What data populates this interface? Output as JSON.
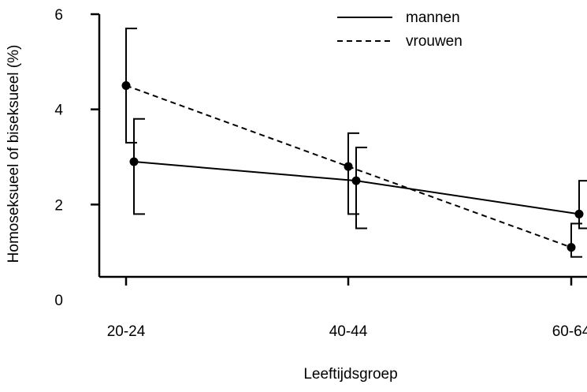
{
  "chart_data": {
    "type": "line",
    "title": "",
    "xlabel": "Leeftijdsgroep",
    "ylabel": "Homoseksueel of biseksueel (%)",
    "categories": [
      "20-24",
      "40-44",
      "60-64"
    ],
    "ylim": [
      0,
      6
    ],
    "yticks": [
      0,
      2,
      4,
      6
    ],
    "legend_position": "top-right",
    "series": [
      {
        "name": "mannen",
        "line_style": "solid",
        "values": [
          2.9,
          2.5,
          1.8
        ],
        "err_low": [
          1.8,
          1.5,
          1.5
        ],
        "err_high": [
          3.8,
          3.2,
          2.5
        ]
      },
      {
        "name": "vrouwen",
        "line_style": "dashed",
        "values": [
          4.5,
          2.8,
          1.1
        ],
        "err_low": [
          3.3,
          1.8,
          0.9
        ],
        "err_high": [
          5.7,
          3.5,
          1.6
        ]
      }
    ]
  }
}
